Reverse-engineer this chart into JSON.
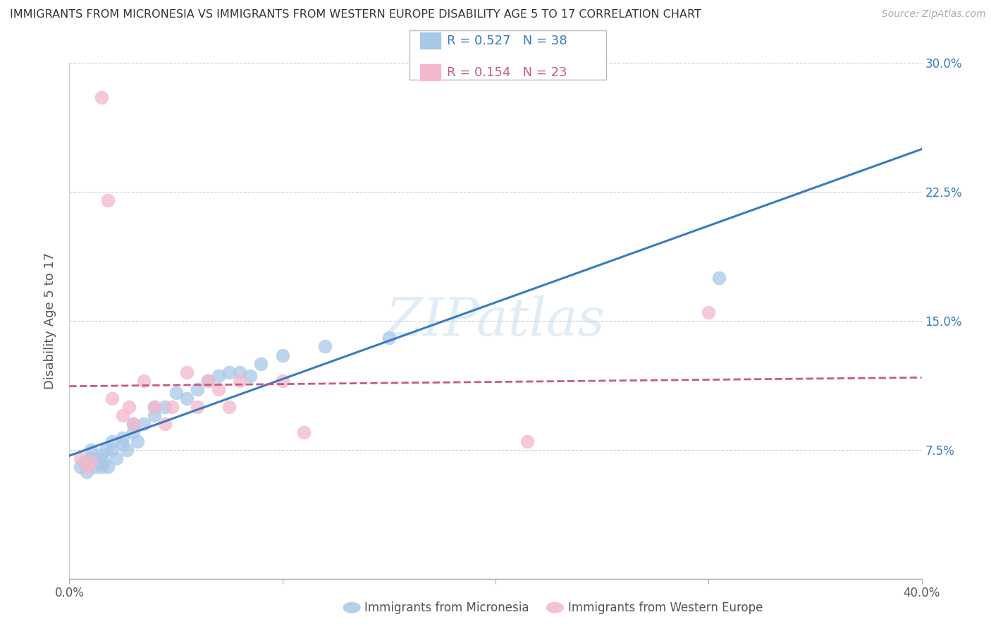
{
  "title": "IMMIGRANTS FROM MICRONESIA VS IMMIGRANTS FROM WESTERN EUROPE DISABILITY AGE 5 TO 17 CORRELATION CHART",
  "source": "Source: ZipAtlas.com",
  "xlabel_label": "Immigrants from Micronesia",
  "xlabel_label2": "Immigrants from Western Europe",
  "ylabel": "Disability Age 5 to 17",
  "xlim": [
    0.0,
    0.4
  ],
  "ylim": [
    0.0,
    0.3
  ],
  "xticks": [
    0.0,
    0.1,
    0.2,
    0.3,
    0.4
  ],
  "xtick_labels": [
    "0.0%",
    "",
    "",
    "",
    "40.0%"
  ],
  "yticks": [
    0.0,
    0.075,
    0.15,
    0.225,
    0.3
  ],
  "ytick_labels": [
    "",
    "7.5%",
    "15.0%",
    "22.5%",
    "30.0%"
  ],
  "legend_blue_r": "0.527",
  "legend_blue_n": "38",
  "legend_pink_r": "0.154",
  "legend_pink_n": "23",
  "color_blue": "#a8c8e8",
  "color_pink": "#f4b8cc",
  "color_blue_line": "#3a7abf",
  "color_pink_line": "#c85a82",
  "color_blue_text": "#3a7abf",
  "color_pink_text": "#c85a82",
  "color_right_axis": "#3a7abf",
  "watermark": "ZIPatlas",
  "blue_scatter_x": [
    0.005,
    0.007,
    0.008,
    0.01,
    0.01,
    0.012,
    0.013,
    0.015,
    0.015,
    0.016,
    0.017,
    0.018,
    0.02,
    0.02,
    0.022,
    0.025,
    0.025,
    0.027,
    0.03,
    0.03,
    0.032,
    0.035,
    0.04,
    0.04,
    0.045,
    0.05,
    0.055,
    0.06,
    0.065,
    0.07,
    0.075,
    0.08,
    0.085,
    0.09,
    0.1,
    0.12,
    0.15,
    0.305
  ],
  "blue_scatter_y": [
    0.065,
    0.068,
    0.062,
    0.07,
    0.075,
    0.065,
    0.07,
    0.065,
    0.072,
    0.068,
    0.075,
    0.065,
    0.075,
    0.08,
    0.07,
    0.078,
    0.082,
    0.075,
    0.085,
    0.09,
    0.08,
    0.09,
    0.095,
    0.1,
    0.1,
    0.108,
    0.105,
    0.11,
    0.115,
    0.118,
    0.12,
    0.12,
    0.118,
    0.125,
    0.13,
    0.135,
    0.14,
    0.175
  ],
  "pink_scatter_x": [
    0.005,
    0.008,
    0.01,
    0.015,
    0.018,
    0.02,
    0.025,
    0.028,
    0.03,
    0.035,
    0.04,
    0.045,
    0.048,
    0.055,
    0.06,
    0.065,
    0.07,
    0.075,
    0.08,
    0.1,
    0.11,
    0.215,
    0.3
  ],
  "pink_scatter_y": [
    0.07,
    0.065,
    0.068,
    0.28,
    0.22,
    0.105,
    0.095,
    0.1,
    0.09,
    0.115,
    0.1,
    0.09,
    0.1,
    0.12,
    0.1,
    0.115,
    0.11,
    0.1,
    0.115,
    0.115,
    0.085,
    0.08,
    0.155
  ],
  "background_color": "#ffffff",
  "grid_color": "#cccccc"
}
